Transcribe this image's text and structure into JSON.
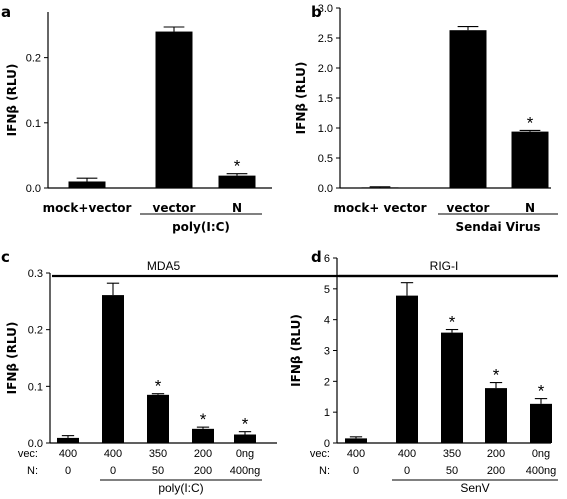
{
  "chart_data": [
    {
      "panel": "a",
      "type": "bar",
      "ylabel": "IFNβ (RLU)",
      "ylim": [
        0,
        0.27
      ],
      "yticks": [
        0.0,
        0.1,
        0.2
      ],
      "ytick_labels": [
        "0.0",
        "0.1",
        "0.2"
      ],
      "categories": [
        "mock+vector",
        "vector",
        "N"
      ],
      "values": [
        0.01,
        0.24,
        0.019
      ],
      "errors": [
        0.005,
        0.007,
        0.003
      ],
      "significance": [
        "",
        "",
        "*"
      ],
      "group_label": "poly(I:C)",
      "group_span": [
        1,
        2
      ],
      "grid": false
    },
    {
      "panel": "b",
      "type": "bar",
      "ylabel": "IFNβ (RLU)",
      "ylim": [
        0,
        3.0
      ],
      "yticks": [
        0.0,
        0.5,
        1.0,
        1.5,
        2.0,
        2.5,
        3.0
      ],
      "ytick_labels": [
        "0.0",
        "0.5",
        "1.0",
        "1.5",
        "2.0",
        "2.5",
        "3.0"
      ],
      "categories": [
        "mock+ vector",
        "vector",
        "N"
      ],
      "values": [
        0.01,
        2.63,
        0.94
      ],
      "errors": [
        0.01,
        0.06,
        0.02
      ],
      "significance": [
        "",
        "",
        "*"
      ],
      "group_label": "Sendai Virus",
      "group_span": [
        1,
        2
      ],
      "grid": false
    },
    {
      "panel": "c",
      "type": "bar",
      "ylabel": "IFNβ (RLU)",
      "ylim": [
        0,
        0.3
      ],
      "yticks": [
        0.0,
        0.1,
        0.2,
        0.3
      ],
      "ytick_labels": [
        "0.0",
        "0.1",
        "0.2",
        "0.3"
      ],
      "top_label": "MDA5",
      "row_labels": [
        "vec:",
        "N:"
      ],
      "row1": [
        "400",
        "400",
        "350",
        "200",
        "0ng"
      ],
      "row2": [
        "0",
        "0",
        "50",
        "200",
        "400ng"
      ],
      "values": [
        0.009,
        0.261,
        0.085,
        0.025,
        0.015
      ],
      "errors": [
        0.004,
        0.021,
        0.002,
        0.003,
        0.005
      ],
      "significance": [
        "",
        "",
        "*",
        "*",
        "*"
      ],
      "group_label": "poly(I:C)",
      "group_span": [
        1,
        4
      ],
      "grid": false
    },
    {
      "panel": "d",
      "type": "bar",
      "ylabel": "IFNβ (RLU)",
      "ylim": [
        0,
        6
      ],
      "yticks": [
        0,
        1,
        2,
        3,
        4,
        5,
        6
      ],
      "ytick_labels": [
        "0",
        "1",
        "2",
        "3",
        "4",
        "5",
        "6"
      ],
      "top_label": "RIG-I",
      "row_labels": [
        "vec:",
        "N:"
      ],
      "row1": [
        "400",
        "400",
        "350",
        "200",
        "0ng"
      ],
      "row2": [
        "0",
        "0",
        "50",
        "200",
        "400ng"
      ],
      "values": [
        0.15,
        4.78,
        3.58,
        1.78,
        1.27
      ],
      "errors": [
        0.05,
        0.42,
        0.1,
        0.18,
        0.17
      ],
      "significance": [
        "",
        "",
        "*",
        "*",
        "*"
      ],
      "group_label": "SenV",
      "group_span": [
        1,
        4
      ],
      "grid": false
    }
  ]
}
